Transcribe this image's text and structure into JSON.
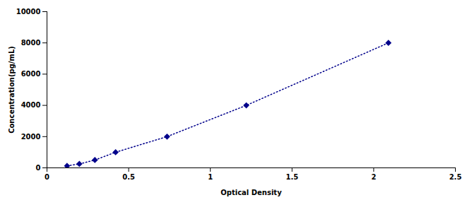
{
  "chart_data": {
    "type": "line",
    "x": [
      0.123,
      0.198,
      0.293,
      0.42,
      0.735,
      1.22,
      2.09
    ],
    "values": [
      125,
      250,
      500,
      1000,
      2000,
      4000,
      8000
    ],
    "color": "#00008B",
    "marker": "diamond",
    "line_style": "dotted",
    "xlabel": "Optical Density",
    "ylabel": "Concentration(pg/mL)",
    "xlim": [
      0,
      2.5
    ],
    "ylim": [
      0,
      10000
    ],
    "xticks": [
      0,
      0.5,
      1,
      1.5,
      2,
      2.5
    ],
    "yticks": [
      0,
      2000,
      4000,
      6000,
      8000,
      10000
    ],
    "grid": false
  }
}
